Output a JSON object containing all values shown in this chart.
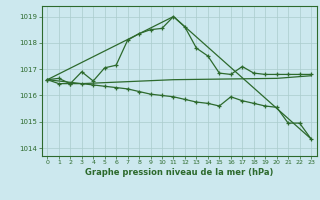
{
  "title": "Graphe pression niveau de la mer (hPa)",
  "bg_color": "#cce8ee",
  "grid_color": "#aacccc",
  "line_color": "#2d6a2d",
  "xlim": [
    -0.5,
    23.5
  ],
  "ylim": [
    1013.7,
    1019.4
  ],
  "yticks": [
    1014,
    1015,
    1016,
    1017,
    1018,
    1019
  ],
  "xticks": [
    0,
    1,
    2,
    3,
    4,
    5,
    6,
    7,
    8,
    9,
    10,
    11,
    12,
    13,
    14,
    15,
    16,
    17,
    18,
    19,
    20,
    21,
    22,
    23
  ],
  "series1_x": [
    0,
    1,
    2,
    3,
    4,
    5,
    6,
    7,
    8,
    9,
    10,
    11,
    12,
    13,
    14,
    15,
    16,
    17,
    18,
    19,
    20,
    21,
    22,
    23
  ],
  "series1_y": [
    1016.6,
    1016.65,
    1016.45,
    1016.9,
    1016.55,
    1017.05,
    1017.15,
    1018.1,
    1018.35,
    1018.5,
    1018.55,
    1019.0,
    1018.6,
    1017.8,
    1017.5,
    1016.85,
    1016.8,
    1017.1,
    1016.85,
    1016.8,
    1016.8,
    1016.8,
    1016.8,
    1016.8
  ],
  "series2_x": [
    0,
    1,
    2,
    3,
    4,
    5,
    6,
    7,
    8,
    9,
    10,
    11,
    12,
    13,
    14,
    15,
    16,
    17,
    18,
    19,
    20,
    21,
    22,
    23
  ],
  "series2_y": [
    1016.6,
    1016.45,
    1016.45,
    1016.45,
    1016.4,
    1016.35,
    1016.3,
    1016.25,
    1016.15,
    1016.05,
    1016.0,
    1015.95,
    1015.85,
    1015.75,
    1015.7,
    1015.6,
    1015.95,
    1015.8,
    1015.7,
    1015.6,
    1015.55,
    1014.95,
    1014.95,
    1014.35
  ],
  "series3_x": [
    0,
    11,
    23
  ],
  "series3_y": [
    1016.6,
    1019.0,
    1014.35
  ],
  "series4_x": [
    0,
    3,
    11,
    20,
    23
  ],
  "series4_y": [
    1016.6,
    1016.45,
    1016.6,
    1016.65,
    1016.75
  ]
}
